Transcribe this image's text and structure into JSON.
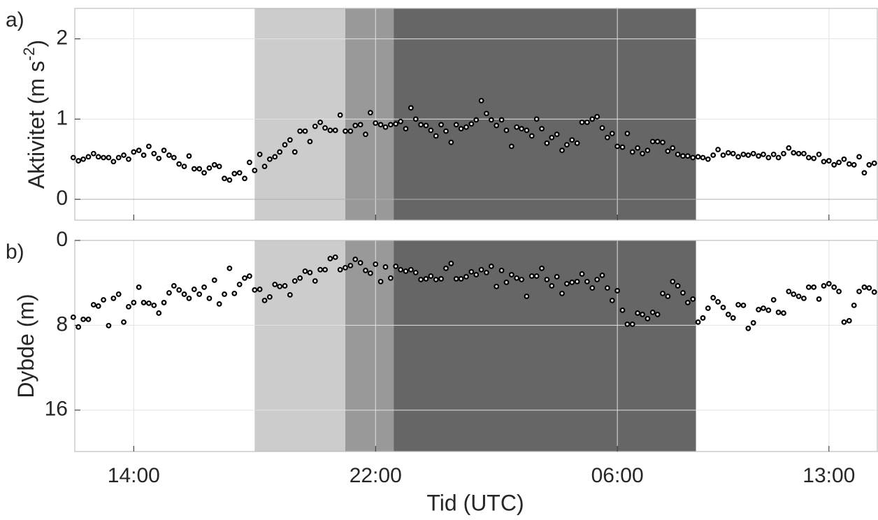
{
  "chart_data": {
    "type": "scatter",
    "xlabel": "Tid (UTC)",
    "xlim": [
      12.05,
      38.6
    ],
    "xticks": [
      {
        "value": 14,
        "label": "14:00"
      },
      {
        "value": 22,
        "label": "22:00"
      },
      {
        "value": 30,
        "label": "06:00"
      },
      {
        "value": 37,
        "label": "13:00"
      }
    ],
    "grid": true,
    "marker_color": "#000000",
    "shaded_regions": [
      {
        "x0": 18.0,
        "x1": 21.0,
        "color": "#cccccc"
      },
      {
        "x0": 21.0,
        "x1": 22.6,
        "color": "#999999"
      },
      {
        "x0": 22.6,
        "x1": 32.6,
        "color": "#666666"
      }
    ],
    "x": [
      12.0,
      12.17,
      12.33,
      12.5,
      12.67,
      12.83,
      13.0,
      13.17,
      13.33,
      13.5,
      13.67,
      13.83,
      14.0,
      14.17,
      14.33,
      14.5,
      14.67,
      14.83,
      15.0,
      15.17,
      15.33,
      15.5,
      15.67,
      15.83,
      16.0,
      16.17,
      16.33,
      16.5,
      16.67,
      16.83,
      17.0,
      17.17,
      17.33,
      17.5,
      17.67,
      17.83,
      18.0,
      18.17,
      18.33,
      18.5,
      18.67,
      18.83,
      19.0,
      19.17,
      19.33,
      19.5,
      19.67,
      19.83,
      20.0,
      20.17,
      20.33,
      20.5,
      20.67,
      20.83,
      21.0,
      21.17,
      21.33,
      21.5,
      21.67,
      21.83,
      22.0,
      22.17,
      22.33,
      22.5,
      22.67,
      22.83,
      23.0,
      23.17,
      23.33,
      23.5,
      23.67,
      23.83,
      24.0,
      24.17,
      24.33,
      24.5,
      24.67,
      24.83,
      25.0,
      25.17,
      25.33,
      25.5,
      25.67,
      25.83,
      26.0,
      26.17,
      26.33,
      26.5,
      26.67,
      26.83,
      27.0,
      27.17,
      27.33,
      27.5,
      27.67,
      27.83,
      28.0,
      28.17,
      28.33,
      28.5,
      28.67,
      28.83,
      29.0,
      29.17,
      29.33,
      29.5,
      29.67,
      29.83,
      30.0,
      30.17,
      30.33,
      30.5,
      30.67,
      30.83,
      31.0,
      31.17,
      31.33,
      31.5,
      31.67,
      31.83,
      32.0,
      32.17,
      32.33,
      32.5,
      32.67,
      32.83,
      33.0,
      33.17,
      33.33,
      33.5,
      33.67,
      33.83,
      34.0,
      34.17,
      34.33,
      34.5,
      34.67,
      34.83,
      35.0,
      35.17,
      35.33,
      35.5,
      35.67,
      35.83,
      36.0,
      36.17,
      36.33,
      36.5,
      36.67,
      36.83,
      37.0,
      37.17,
      37.33,
      37.5,
      37.67,
      37.83,
      38.0,
      38.17,
      38.33,
      38.5
    ],
    "panels": [
      {
        "label": "a)",
        "ylabel": "Aktivitet (m s",
        "ylabel_sup": "-2",
        "ylabel_end": ")",
        "ylim": [
          -0.26,
          2.38
        ],
        "yticks": [
          0,
          1,
          2
        ],
        "y_reversed": false,
        "values": [
          0.52,
          0.48,
          0.5,
          0.53,
          0.57,
          0.53,
          0.52,
          0.52,
          0.47,
          0.52,
          0.55,
          0.5,
          0.59,
          0.61,
          0.55,
          0.66,
          0.57,
          0.51,
          0.61,
          0.55,
          0.52,
          0.44,
          0.41,
          0.54,
          0.38,
          0.38,
          0.33,
          0.39,
          0.43,
          0.41,
          0.26,
          0.24,
          0.32,
          0.33,
          0.26,
          0.46,
          0.36,
          0.56,
          0.41,
          0.5,
          0.53,
          0.59,
          0.68,
          0.74,
          0.59,
          0.85,
          0.85,
          0.72,
          0.91,
          0.96,
          0.89,
          0.86,
          0.86,
          1.05,
          0.85,
          0.85,
          0.92,
          0.93,
          0.81,
          1.08,
          0.95,
          0.93,
          0.9,
          0.93,
          0.94,
          0.97,
          0.88,
          1.14,
          1.0,
          0.93,
          0.92,
          0.86,
          0.79,
          0.93,
          0.85,
          0.71,
          0.93,
          0.88,
          0.9,
          0.94,
          0.99,
          1.23,
          1.07,
          0.99,
          0.92,
          0.99,
          0.86,
          0.66,
          0.9,
          0.88,
          0.86,
          0.79,
          1.0,
          0.88,
          0.7,
          0.77,
          0.81,
          0.61,
          0.68,
          0.74,
          0.7,
          0.96,
          0.96,
          1.0,
          1.03,
          0.89,
          0.77,
          0.82,
          0.66,
          0.65,
          0.82,
          0.59,
          0.64,
          0.57,
          0.61,
          0.72,
          0.72,
          0.71,
          0.6,
          0.64,
          0.56,
          0.54,
          0.54,
          0.52,
          0.53,
          0.52,
          0.5,
          0.55,
          0.62,
          0.55,
          0.58,
          0.57,
          0.53,
          0.56,
          0.55,
          0.57,
          0.54,
          0.56,
          0.52,
          0.56,
          0.52,
          0.57,
          0.64,
          0.58,
          0.57,
          0.57,
          0.52,
          0.51,
          0.56,
          0.47,
          0.48,
          0.43,
          0.46,
          0.5,
          0.44,
          0.43,
          0.53,
          0.33,
          0.43,
          0.45
        ]
      },
      {
        "label": "b)",
        "ylabel": "Dybde (m)",
        "ylim": [
          0,
          19.9
        ],
        "yticks": [
          0,
          8,
          16
        ],
        "y_reversed": true,
        "values": [
          7.24,
          8.16,
          7.44,
          7.44,
          6.06,
          6.19,
          5.6,
          8.03,
          5.46,
          5.07,
          7.7,
          6.25,
          5.86,
          4.41,
          5.86,
          5.92,
          6.12,
          6.85,
          5.86,
          4.94,
          4.28,
          4.67,
          5.07,
          5.46,
          4.61,
          5.07,
          4.41,
          5.46,
          3.75,
          5.99,
          5.07,
          2.63,
          5.0,
          4.15,
          3.55,
          3.36,
          4.67,
          4.61,
          5.66,
          5.33,
          4.15,
          4.34,
          4.28,
          5.13,
          3.82,
          3.55,
          2.9,
          3.03,
          3.82,
          2.76,
          2.76,
          1.71,
          1.58,
          2.76,
          2.57,
          2.37,
          1.78,
          2.11,
          2.83,
          3.09,
          2.24,
          3.88,
          2.5,
          3.55,
          2.44,
          2.76,
          2.9,
          2.76,
          3.03,
          3.69,
          3.62,
          3.36,
          3.69,
          3.62,
          2.63,
          2.17,
          3.62,
          3.62,
          3.42,
          2.96,
          3.23,
          2.76,
          3.03,
          2.44,
          4.34,
          2.83,
          3.95,
          3.23,
          3.55,
          3.69,
          5.27,
          3.36,
          3.36,
          2.63,
          3.69,
          4.28,
          3.42,
          5.0,
          4.08,
          3.95,
          3.88,
          3.16,
          3.88,
          4.48,
          3.69,
          3.29,
          4.48,
          5.66,
          4.74,
          6.58,
          7.9,
          7.9,
          6.85,
          6.98,
          7.37,
          6.78,
          6.98,
          5.0,
          5.27,
          3.88,
          4.28,
          4.94,
          5.86,
          5.53,
          7.7,
          7.31,
          6.39,
          5.4,
          5.79,
          6.32,
          6.98,
          7.31,
          6.06,
          6.12,
          8.29,
          7.77,
          6.52,
          6.39,
          6.58,
          5.6,
          6.78,
          6.85,
          4.81,
          5.07,
          5.27,
          5.46,
          4.41,
          4.41,
          5.53,
          4.28,
          4.08,
          4.41,
          4.81,
          7.7,
          7.57,
          6.12,
          4.81,
          4.41,
          4.48,
          4.87
        ]
      }
    ]
  }
}
